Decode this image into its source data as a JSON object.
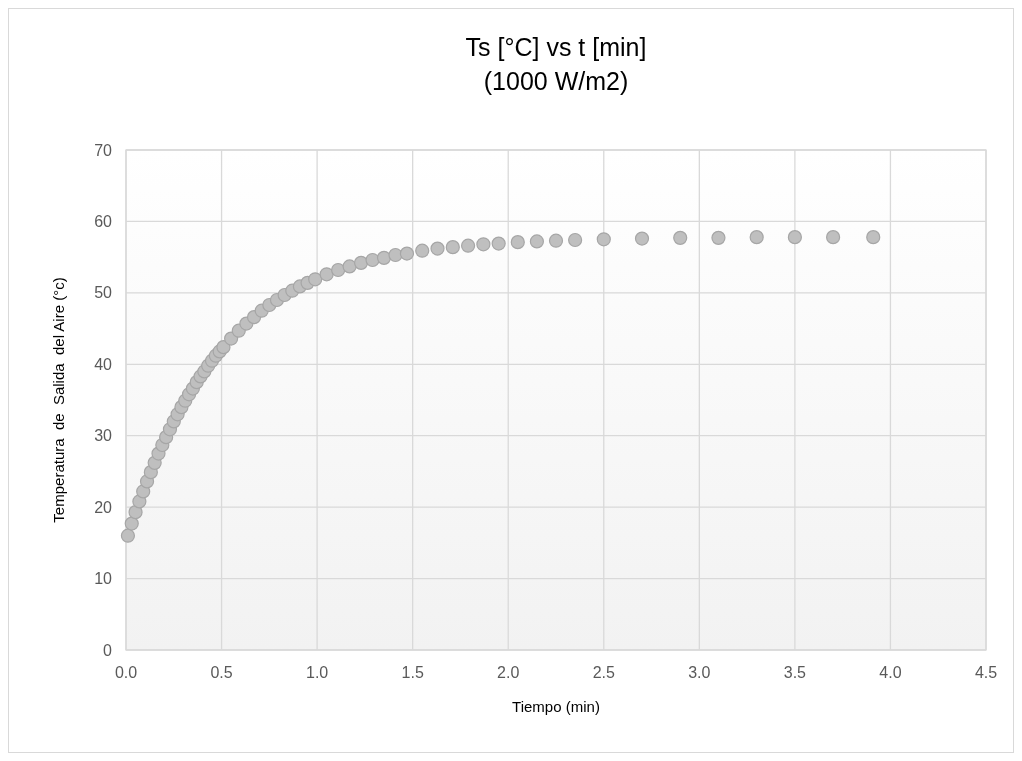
{
  "chart_data": {
    "type": "scatter",
    "title": "Ts [°C] vs t [min]",
    "subtitle": "(1000 W/m2)",
    "xlabel": "Tiempo (min)",
    "ylabel": "Temperatura  de  Salida  del Aire (°c)",
    "xlim": [
      0,
      4.5
    ],
    "xticks": [
      {
        "value": 0,
        "label": "0.0"
      },
      {
        "value": 0.5,
        "label": "0.5"
      },
      {
        "value": 1,
        "label": "1.0"
      },
      {
        "value": 1.5,
        "label": "1.5"
      },
      {
        "value": 2,
        "label": "2.0"
      },
      {
        "value": 2.5,
        "label": "2.5"
      },
      {
        "value": 3,
        "label": "3.0"
      },
      {
        "value": 3.5,
        "label": "3.5"
      },
      {
        "value": 4,
        "label": "4.0"
      },
      {
        "value": 4.5,
        "label": "4.5"
      }
    ],
    "ylim": [
      0,
      70
    ],
    "yticks": [
      0,
      10,
      20,
      30,
      40,
      50,
      60,
      70
    ],
    "grid": true,
    "marker": "circle",
    "series": [
      {
        "color": "#bfbfbf",
        "x": [
          0.01,
          0.03,
          0.05,
          0.07,
          0.09,
          0.11,
          0.13,
          0.15,
          0.17,
          0.19,
          0.21,
          0.23,
          0.25,
          0.27,
          0.29,
          0.31,
          0.33,
          0.35,
          0.37,
          0.39,
          0.41,
          0.43,
          0.45,
          0.47,
          0.49,
          0.51,
          0.55,
          0.59,
          0.63,
          0.67,
          0.71,
          0.75,
          0.79,
          0.83,
          0.87,
          0.91,
          0.95,
          0.99,
          1.05,
          1.11,
          1.17,
          1.23,
          1.29,
          1.35,
          1.41,
          1.47,
          1.55,
          1.63,
          1.71,
          1.79,
          1.87,
          1.95,
          2.05,
          2.15,
          2.25,
          2.35,
          2.5,
          2.7,
          2.9,
          3.1,
          3.3,
          3.5,
          3.7,
          3.91
        ],
        "values": [
          16.0,
          17.7,
          19.3,
          20.8,
          22.2,
          23.6,
          24.9,
          26.2,
          27.5,
          28.7,
          29.8,
          30.9,
          32.0,
          33.0,
          34.0,
          34.9,
          35.8,
          36.6,
          37.5,
          38.3,
          39.0,
          39.8,
          40.5,
          41.2,
          41.8,
          42.4,
          43.6,
          44.7,
          45.7,
          46.6,
          47.5,
          48.3,
          49.0,
          49.7,
          50.3,
          50.9,
          51.4,
          51.9,
          52.6,
          53.2,
          53.7,
          54.2,
          54.6,
          54.9,
          55.3,
          55.5,
          55.9,
          56.2,
          56.4,
          56.6,
          56.8,
          56.9,
          57.1,
          57.2,
          57.3,
          57.4,
          57.5,
          57.6,
          57.7,
          57.7,
          57.8,
          57.8,
          57.8,
          57.8
        ]
      }
    ]
  }
}
